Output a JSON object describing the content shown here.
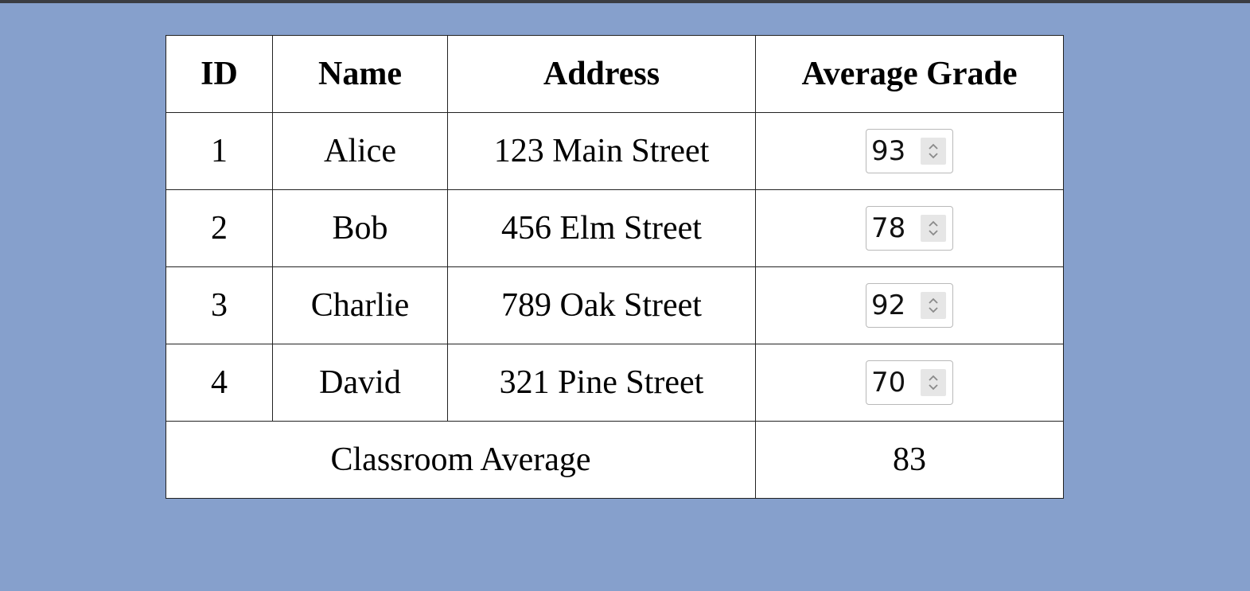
{
  "table": {
    "headers": {
      "id": "ID",
      "name": "Name",
      "address": "Address",
      "grade": "Average Grade"
    },
    "rows": [
      {
        "id": "1",
        "name": "Alice",
        "address": "123 Main Street",
        "grade": "93"
      },
      {
        "id": "2",
        "name": "Bob",
        "address": "456 Elm Street",
        "grade": "78"
      },
      {
        "id": "3",
        "name": "Charlie",
        "address": "789 Oak Street",
        "grade": "92"
      },
      {
        "id": "4",
        "name": "David",
        "address": "321 Pine Street",
        "grade": "70"
      }
    ],
    "footer": {
      "label": "Classroom Average",
      "value": "83"
    }
  },
  "colors": {
    "background": "#86a0cc",
    "table_background": "#ffffff",
    "border": "#222222"
  },
  "icons": {
    "spinner": "chevron-up-down-icon"
  }
}
